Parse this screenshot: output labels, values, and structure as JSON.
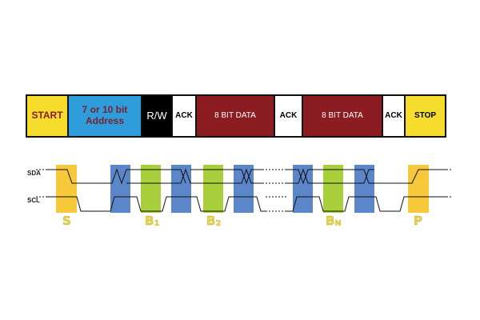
{
  "frame": {
    "start": "START",
    "address_line1": "7 or 10 bit",
    "address_line2": "Address",
    "rw": "R/W",
    "ack1": "ACK",
    "data1": "8 BIT DATA",
    "ack2": "ACK",
    "data2": "8 BIT DATA",
    "ack3": "ACK",
    "stop": "STOP"
  },
  "signals": {
    "sda": "SDA",
    "scl": "SCL"
  },
  "phases": {
    "start": "S",
    "byte1": "B",
    "byte1_sub": "1",
    "byte2": "B",
    "byte2_sub": "2",
    "byten": "B",
    "byten_sub": "N",
    "stop": "P"
  },
  "colors": {
    "start_stop": "#f6dc2c",
    "address": "#2f9cdb",
    "rw": "#000000",
    "data": "#8b1c22",
    "ack": "#ffffff",
    "clock_window": "#5b86c9",
    "byte_window": "#a9cf3c"
  }
}
